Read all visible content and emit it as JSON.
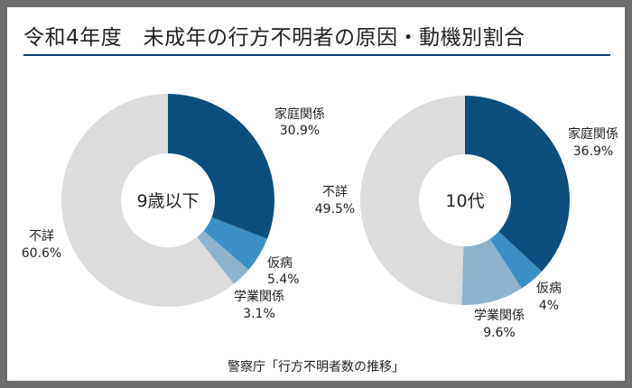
{
  "title": "令和4年度　未成年の行方不明者の原因・動機別割合",
  "source": "警察庁「行方不明者数の推移」",
  "colors": {
    "family": "#0b4f7f",
    "illness": "#3b8fc6",
    "school": "#8db4cc",
    "unknown": "#dcdcdc",
    "border": "#6e6e6e",
    "rule": "#123f6b"
  },
  "chart_data": [
    {
      "type": "pie",
      "center_label": "9歳以下",
      "slices": [
        {
          "name": "家庭関係",
          "value": 30.9,
          "label": "30.9%"
        },
        {
          "name": "仮病",
          "value": 5.4,
          "label": "5.4%"
        },
        {
          "name": "学業関係",
          "value": 3.1,
          "label": "3.1%"
        },
        {
          "name": "不詳",
          "value": 60.6,
          "label": "60.6%"
        }
      ]
    },
    {
      "type": "pie",
      "center_label": "10代",
      "slices": [
        {
          "name": "家庭関係",
          "value": 36.9,
          "label": "36.9%"
        },
        {
          "name": "仮病",
          "value": 4,
          "label": "4%"
        },
        {
          "name": "学業関係",
          "value": 9.6,
          "label": "9.6%"
        },
        {
          "name": "不詳",
          "value": 49.5,
          "label": "49.5%"
        }
      ]
    }
  ]
}
